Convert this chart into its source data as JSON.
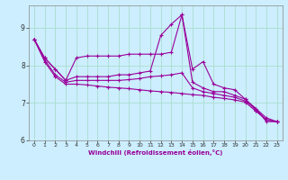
{
  "xlabel": "Windchill (Refroidissement éolien,°C)",
  "background_color": "#cceeff",
  "grid_color": "#aaddcc",
  "line_color": "#990099",
  "xlim": [
    -0.5,
    23.5
  ],
  "ylim": [
    6.0,
    9.6
  ],
  "yticks": [
    6,
    7,
    8,
    9
  ],
  "xticks": [
    0,
    1,
    2,
    3,
    4,
    5,
    6,
    7,
    8,
    9,
    10,
    11,
    12,
    13,
    14,
    15,
    16,
    17,
    18,
    19,
    20,
    21,
    22,
    23
  ],
  "series": [
    {
      "x": [
        0,
        1,
        2,
        3,
        4,
        5,
        6,
        7,
        8,
        9,
        10,
        11,
        12,
        13,
        14,
        15,
        16,
        17,
        18,
        19,
        20,
        21,
        22,
        23
      ],
      "y": [
        8.7,
        8.2,
        7.9,
        7.6,
        8.2,
        8.25,
        8.25,
        8.25,
        8.25,
        8.3,
        8.3,
        8.3,
        8.3,
        8.35,
        9.35,
        7.9,
        8.1,
        7.5,
        7.4,
        7.35,
        7.1,
        6.85,
        6.5,
        6.5
      ]
    },
    {
      "x": [
        0,
        1,
        2,
        3,
        4,
        5,
        6,
        7,
        8,
        9,
        10,
        11,
        12,
        13,
        14,
        15,
        16,
        17,
        18,
        19,
        20,
        21,
        22,
        23
      ],
      "y": [
        8.7,
        8.2,
        7.9,
        7.6,
        7.7,
        7.7,
        7.7,
        7.7,
        7.75,
        7.75,
        7.8,
        7.85,
        8.8,
        9.1,
        9.35,
        7.55,
        7.4,
        7.3,
        7.3,
        7.2,
        7.1,
        6.8,
        6.55,
        6.5
      ]
    },
    {
      "x": [
        0,
        1,
        2,
        3,
        4,
        5,
        6,
        7,
        8,
        9,
        10,
        11,
        12,
        13,
        14,
        15,
        16,
        17,
        18,
        19,
        20,
        21,
        22,
        23
      ],
      "y": [
        8.7,
        8.15,
        7.75,
        7.55,
        7.6,
        7.6,
        7.6,
        7.6,
        7.6,
        7.62,
        7.65,
        7.7,
        7.72,
        7.75,
        7.8,
        7.4,
        7.3,
        7.25,
        7.2,
        7.15,
        7.05,
        6.85,
        6.6,
        6.5
      ]
    },
    {
      "x": [
        0,
        1,
        2,
        3,
        4,
        5,
        6,
        7,
        8,
        9,
        10,
        11,
        12,
        13,
        14,
        15,
        16,
        17,
        18,
        19,
        20,
        21,
        22,
        23
      ],
      "y": [
        8.7,
        8.1,
        7.7,
        7.5,
        7.5,
        7.48,
        7.45,
        7.42,
        7.4,
        7.38,
        7.35,
        7.32,
        7.3,
        7.28,
        7.25,
        7.22,
        7.2,
        7.15,
        7.12,
        7.08,
        7.02,
        6.78,
        6.55,
        6.5
      ]
    }
  ]
}
